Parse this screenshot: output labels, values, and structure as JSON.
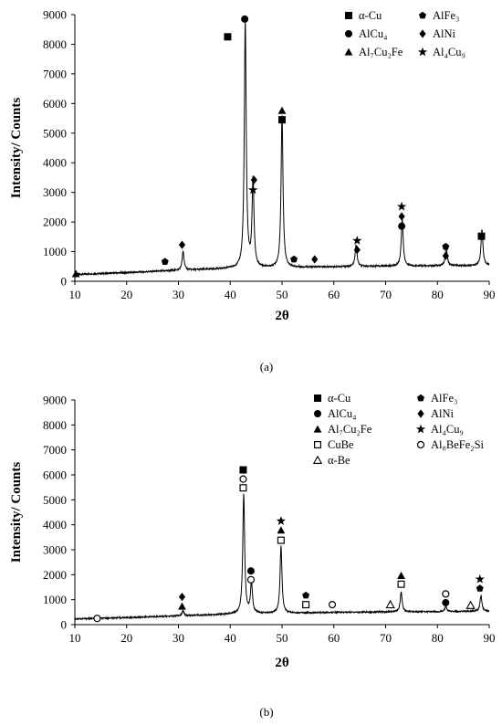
{
  "chart_data": [
    {
      "type": "line",
      "panel_label": "(a)",
      "xlabel": "2θ",
      "ylabel": "Intensity/ Counts",
      "xlim": [
        10,
        90
      ],
      "ylim": [
        0,
        9000
      ],
      "xticks": [
        10,
        20,
        30,
        40,
        50,
        60,
        70,
        80,
        90
      ],
      "yticks": [
        0,
        1000,
        2000,
        3000,
        4000,
        5000,
        6000,
        7000,
        8000,
        9000
      ],
      "grid": false,
      "legend_position": "top-right",
      "legend": [
        {
          "marker": "square",
          "label": "α-Cu"
        },
        {
          "marker": "pentagon",
          "label": "AlFe₃"
        },
        {
          "marker": "circle",
          "label": "AlCu₄"
        },
        {
          "marker": "diamond",
          "label": "AlNi"
        },
        {
          "marker": "triangle",
          "label": "Al₇Cu₂Fe"
        },
        {
          "marker": "star",
          "label": "Al₄Cu₉"
        }
      ],
      "baseline": [
        [
          10,
          230
        ],
        [
          20,
          290
        ],
        [
          30,
          370
        ],
        [
          40,
          430
        ],
        [
          50,
          460
        ],
        [
          60,
          490
        ],
        [
          70,
          510
        ],
        [
          80,
          520
        ],
        [
          90,
          540
        ]
      ],
      "peaks": [
        {
          "x": 30.9,
          "height": 630
        },
        {
          "x": 42.9,
          "height": 8300
        },
        {
          "x": 44.4,
          "height": 2950
        },
        {
          "x": 50.0,
          "height": 5150
        },
        {
          "x": 64.3,
          "height": 730
        },
        {
          "x": 73.2,
          "height": 1600
        },
        {
          "x": 81.7,
          "height": 640
        },
        {
          "x": 88.6,
          "height": 1220
        }
      ],
      "markers": [
        {
          "x": 10.2,
          "y": 250,
          "marker": "triangle"
        },
        {
          "x": 27.4,
          "y": 660,
          "marker": "pentagon"
        },
        {
          "x": 30.7,
          "y": 1230,
          "marker": "diamond"
        },
        {
          "x": 39.5,
          "y": 8250,
          "marker": "square"
        },
        {
          "x": 42.8,
          "y": 8850,
          "marker": "circle"
        },
        {
          "x": 44.6,
          "y": 3420,
          "marker": "diamond"
        },
        {
          "x": 44.4,
          "y": 3080,
          "marker": "star"
        },
        {
          "x": 50.0,
          "y": 5760,
          "marker": "triangle"
        },
        {
          "x": 50.0,
          "y": 5450,
          "marker": "square"
        },
        {
          "x": 52.3,
          "y": 740,
          "marker": "pentagon"
        },
        {
          "x": 56.3,
          "y": 740,
          "marker": "diamond"
        },
        {
          "x": 64.5,
          "y": 1370,
          "marker": "star"
        },
        {
          "x": 64.5,
          "y": 1060,
          "marker": "diamond"
        },
        {
          "x": 73.1,
          "y": 2520,
          "marker": "star"
        },
        {
          "x": 73.1,
          "y": 2190,
          "marker": "diamond"
        },
        {
          "x": 73.1,
          "y": 1860,
          "marker": "circle"
        },
        {
          "x": 81.6,
          "y": 1170,
          "marker": "pentagon"
        },
        {
          "x": 81.6,
          "y": 860,
          "marker": "diamond"
        },
        {
          "x": 88.5,
          "y": 1520,
          "marker": "square"
        }
      ]
    },
    {
      "type": "line",
      "panel_label": "(b)",
      "xlabel": "2θ",
      "ylabel": "Intensity/ Counts",
      "xlim": [
        10,
        90
      ],
      "ylim": [
        0,
        9000
      ],
      "xticks": [
        10,
        20,
        30,
        40,
        50,
        60,
        70,
        80,
        90
      ],
      "yticks": [
        0,
        1000,
        2000,
        3000,
        4000,
        5000,
        6000,
        7000,
        8000,
        9000
      ],
      "grid": false,
      "legend_position": "top-right",
      "legend": [
        {
          "marker": "square",
          "label": "α-Cu"
        },
        {
          "marker": "pentagon",
          "label": "AlFe₃"
        },
        {
          "marker": "circle",
          "label": "AlCu₄"
        },
        {
          "marker": "diamond",
          "label": "AlNi"
        },
        {
          "marker": "triangle",
          "label": "Al₇Cu₂Fe"
        },
        {
          "marker": "star",
          "label": "Al₄Cu₉"
        },
        {
          "marker": "square-open",
          "label": "CuBe"
        },
        {
          "marker": "circle-open",
          "label": "Al₈BeFe₂Si"
        },
        {
          "marker": "triangle-open",
          "label": "α-Be"
        }
      ],
      "baseline": [
        [
          10,
          230
        ],
        [
          20,
          280
        ],
        [
          30,
          350
        ],
        [
          40,
          420
        ],
        [
          50,
          460
        ],
        [
          60,
          490
        ],
        [
          70,
          510
        ],
        [
          80,
          520
        ],
        [
          90,
          540
        ]
      ],
      "peaks": [
        {
          "x": 30.9,
          "height": 200
        },
        {
          "x": 42.6,
          "height": 4800
        },
        {
          "x": 44.1,
          "height": 1250
        },
        {
          "x": 49.8,
          "height": 2700
        },
        {
          "x": 73.0,
          "height": 800
        },
        {
          "x": 81.6,
          "height": 200
        },
        {
          "x": 88.4,
          "height": 630
        }
      ],
      "markers": [
        {
          "x": 14.3,
          "y": 250,
          "marker": "circle-open"
        },
        {
          "x": 30.7,
          "y": 1110,
          "marker": "diamond"
        },
        {
          "x": 30.7,
          "y": 730,
          "marker": "triangle"
        },
        {
          "x": 42.5,
          "y": 6200,
          "marker": "square"
        },
        {
          "x": 42.5,
          "y": 5830,
          "marker": "circle-open"
        },
        {
          "x": 42.5,
          "y": 5480,
          "marker": "square-open"
        },
        {
          "x": 44.0,
          "y": 2150,
          "marker": "circle"
        },
        {
          "x": 44.0,
          "y": 1800,
          "marker": "circle-open"
        },
        {
          "x": 49.8,
          "y": 4150,
          "marker": "star"
        },
        {
          "x": 49.8,
          "y": 3780,
          "marker": "triangle"
        },
        {
          "x": 49.8,
          "y": 3380,
          "marker": "square-open"
        },
        {
          "x": 54.6,
          "y": 1170,
          "marker": "pentagon"
        },
        {
          "x": 54.6,
          "y": 800,
          "marker": "square-open"
        },
        {
          "x": 59.7,
          "y": 800,
          "marker": "circle-open"
        },
        {
          "x": 70.9,
          "y": 800,
          "marker": "triangle-open"
        },
        {
          "x": 73.0,
          "y": 1960,
          "marker": "triangle"
        },
        {
          "x": 73.0,
          "y": 1620,
          "marker": "square-open"
        },
        {
          "x": 81.6,
          "y": 1230,
          "marker": "circle-open"
        },
        {
          "x": 81.6,
          "y": 880,
          "marker": "circle"
        },
        {
          "x": 86.4,
          "y": 770,
          "marker": "triangle-open"
        },
        {
          "x": 88.2,
          "y": 1820,
          "marker": "star"
        },
        {
          "x": 88.2,
          "y": 1450,
          "marker": "pentagon"
        }
      ]
    }
  ]
}
